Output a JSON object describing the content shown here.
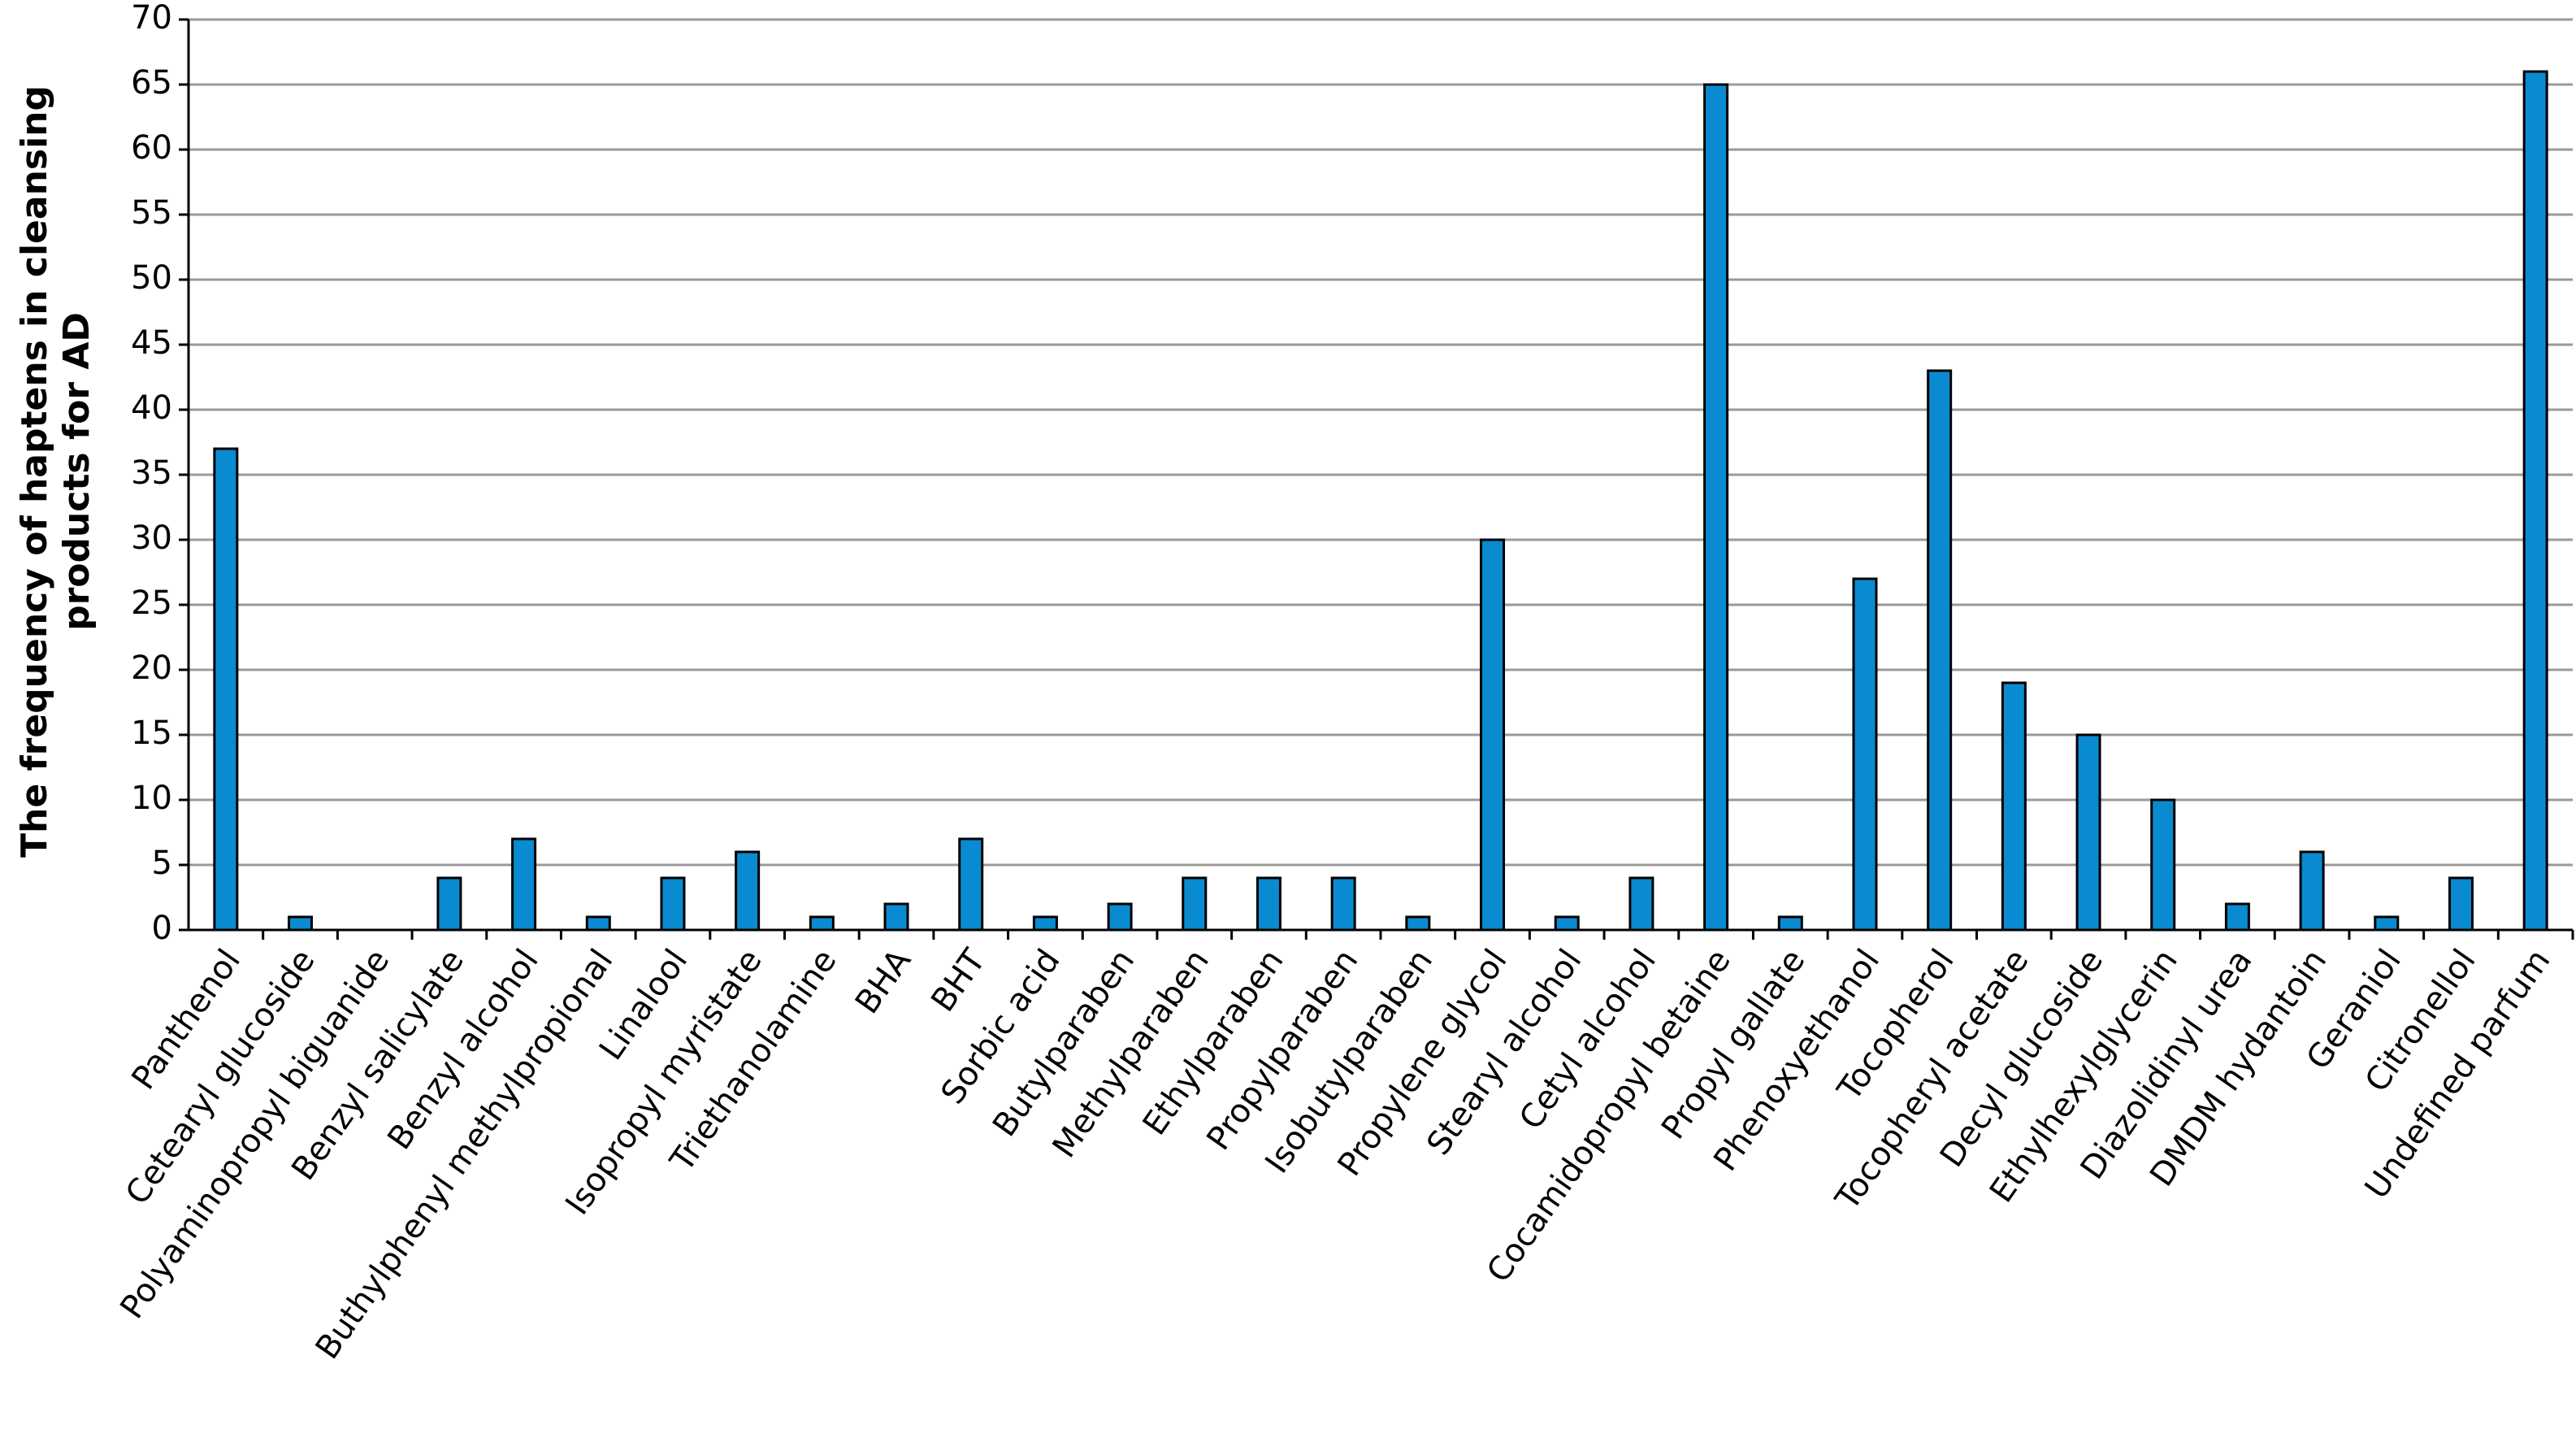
{
  "chart_data": {
    "type": "bar",
    "ylabel": [
      "The frequency of haptens in cleansing",
      "products for AD"
    ],
    "categories": [
      "Panthenol",
      "Cetearyl glucoside",
      "Polyaminopropyl biguanide",
      "Benzyl salicylate",
      "Benzyl alcohol",
      "Buthylphenyl methylpropional",
      "Linalool",
      "Isopropyl myristate",
      "Triethanolamine",
      "BHA",
      "BHT",
      "Sorbic acid",
      "Butylparaben",
      "Methylparaben",
      "Ethylparaben",
      "Propylparaben",
      "Isobutylparaben",
      "Propylene glycol",
      "Stearyl alcohol",
      "Cetyl alcohol",
      "Cocamidopropyl betaine",
      "Propyl gallate",
      "Phenoxyethanol",
      "Tocopherol",
      "Tocopheryl acetate",
      "Decyl glucoside",
      "Ethylhexylglycerin",
      "Diazolidinyl urea",
      "DMDM hydantoin",
      "Geraniol",
      "Citronellol",
      "Undefined parfum"
    ],
    "values": [
      37,
      1,
      0,
      4,
      7,
      1,
      4,
      6,
      1,
      2,
      7,
      1,
      2,
      4,
      4,
      4,
      1,
      30,
      1,
      4,
      65,
      1,
      27,
      43,
      19,
      15,
      10,
      2,
      6,
      1,
      4,
      66
    ],
    "color": "#0a8ad0",
    "ylim": [
      0,
      70
    ],
    "yticks": [
      0,
      5,
      10,
      15,
      20,
      25,
      30,
      35,
      40,
      45,
      50,
      55,
      60,
      65,
      70
    ],
    "grid": true
  }
}
